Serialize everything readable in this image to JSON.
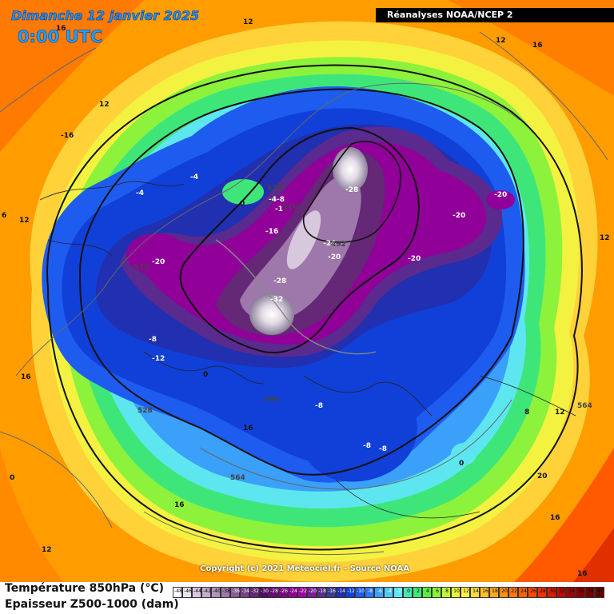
{
  "header": {
    "date": "Dimanche 12 janvier 2025",
    "time": "0:00 UTC",
    "source": "Réanalyses NOAA/NCEP 2"
  },
  "footer": {
    "copyright": "Copyright (c) 2021 Meteociel.fr - Source NOAA",
    "legend_line1": "Température 850hPa (°C)",
    "legend_line2": "Epaisseur Z500-1000 (dam)"
  },
  "legend_scale": {
    "labels": [
      "-48",
      "-46",
      "-44",
      "-42",
      "-40",
      "-38",
      "-36",
      "-34",
      "-32",
      "-30",
      "-28",
      "-26",
      "-24",
      "-22",
      "-20",
      "-18",
      "-16",
      "-14",
      "-12",
      "-10",
      "-8",
      "-6",
      "-4",
      "-2",
      "0",
      "2",
      "4",
      "6",
      "8",
      "10",
      "12",
      "14",
      "16",
      "18",
      "20",
      "22",
      "24",
      "26",
      "28",
      "30",
      "32",
      "34",
      "36",
      "38",
      "40"
    ],
    "colors": [
      "#ffffff",
      "#ebe3ef",
      "#d8c8de",
      "#c4adcc",
      "#b193bb",
      "#9e78aa",
      "#8a5d98",
      "#774287",
      "#642876",
      "#510d64",
      "#6a0a78",
      "#7f0087",
      "#900098",
      "#a000aa",
      "#7a1c9a",
      "#5a2a8e",
      "#3a3a9a",
      "#2030b0",
      "#1040d8",
      "#1e5cf0",
      "#2c78f8",
      "#3aa0fa",
      "#50c8f8",
      "#5ee6f0",
      "#46e6b4",
      "#3ee67a",
      "#58ee3c",
      "#8cf23c",
      "#c0f43c",
      "#e8f640",
      "#fff04a",
      "#ffd83a",
      "#ffc02c",
      "#ffa81e",
      "#ff9010",
      "#ff7808",
      "#ff6000",
      "#ff4800",
      "#f03000",
      "#d81c00",
      "#c00a00",
      "#a80000",
      "#900000",
      "#780000",
      "#600000"
    ]
  },
  "map_labels": {
    "temperature": [
      "16",
      "12",
      "12",
      "12",
      "16",
      "-16",
      "6",
      "12",
      "-4",
      "-4",
      "0",
      "-4",
      "-8",
      "-1",
      "-28",
      "-20",
      "-20",
      "-16",
      "-24",
      "-20",
      "-20",
      "-28",
      "-32",
      "-20",
      "-8",
      "-12",
      "0",
      "-8",
      "-8",
      "-8",
      "0",
      "8",
      "12",
      "16",
      "16",
      "0",
      "16",
      "12",
      "16",
      "16",
      "20",
      "12",
      "16"
    ],
    "thickness": [
      "528",
      "510",
      "510",
      "492",
      "546",
      "528",
      "564",
      "564"
    ]
  }
}
